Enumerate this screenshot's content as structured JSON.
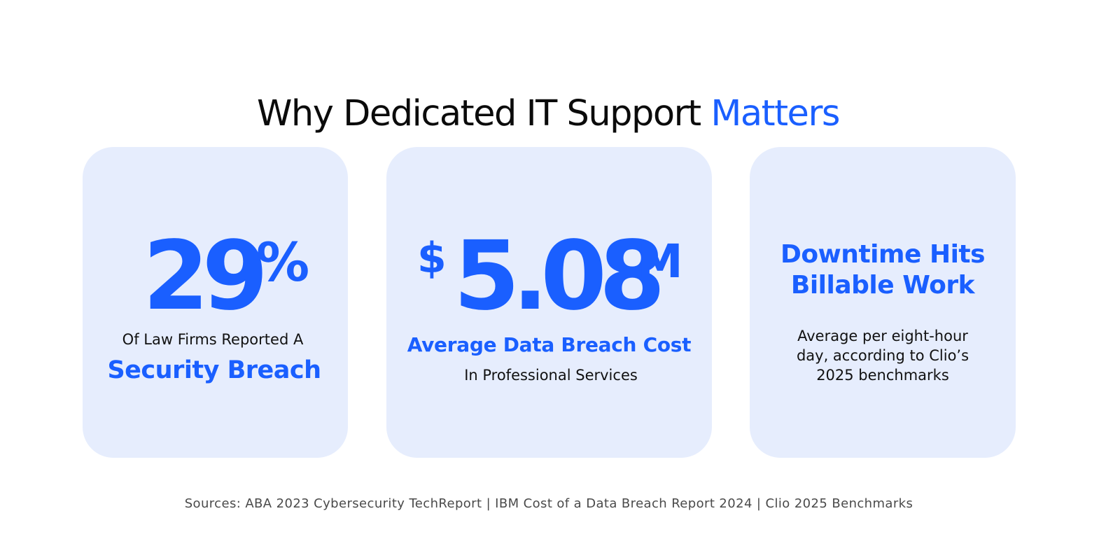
{
  "headline": {
    "main": "Why Dedicated IT Support ",
    "accent": "Matters"
  },
  "cards": [
    {
      "stat_number": "29",
      "stat_suffix": "%",
      "label": "Of Law Firms Reported A",
      "highlight": "Security Breach"
    },
    {
      "stat_prefix": "$",
      "stat_number": "5.08",
      "stat_suffix": "M",
      "highlight": "Average Data Breach Cost",
      "label": "In Professional Services"
    },
    {
      "title_lines": [
        "Downtime Hits",
        "Billable Work"
      ],
      "description_lines": [
        "Average per eight-hour",
        "day, according to Clio’s",
        "2025 benchmarks"
      ]
    }
  ],
  "sources": "Sources: ABA 2023 Cybersecurity TechReport | IBM Cost of a Data Breach Report 2024 | Clio 2025 Benchmarks",
  "colors": {
    "accent": "#1a5fff",
    "card_background": "#e6edfd",
    "text": "#0b0b0b"
  }
}
